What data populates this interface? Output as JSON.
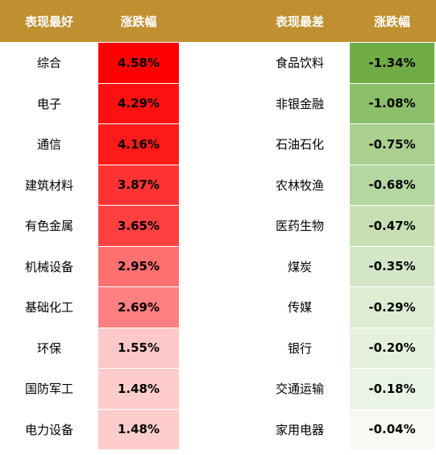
{
  "header": [
    "表现最好",
    "涨跌幅",
    "表现最差",
    "涨跌幅"
  ],
  "rows": [
    {
      "best": "综合",
      "best_change": "4.58%",
      "best_color": "#ff0000",
      "worst": "食品饮料",
      "worst_change": "-1.34%",
      "worst_color": "#70ad47"
    },
    {
      "best": "电子",
      "best_change": "4.29%",
      "best_color": "#ff1010",
      "worst": "非银金融",
      "worst_change": "-1.08%",
      "worst_color": "#8cbf6a"
    },
    {
      "best": "通信",
      "best_change": "4.16%",
      "best_color": "#ff1a1a",
      "worst": "石油石化",
      "worst_change": "-0.75%",
      "worst_color": "#a9d08e"
    },
    {
      "best": "建筑材料",
      "best_change": "3.87%",
      "best_color": "#ff3333",
      "worst": "农林牧渔",
      "worst_change": "-0.68%",
      "worst_color": "#b4d6a0"
    },
    {
      "best": "有色金属",
      "best_change": "3.65%",
      "best_color": "#ff4040",
      "worst": "医药生物",
      "worst_change": "-0.47%",
      "worst_color": "#c6e0b4"
    },
    {
      "best": "机械设备",
      "best_change": "2.95%",
      "best_color": "#ff7070",
      "worst": "煤炭",
      "worst_change": "-0.35%",
      "worst_color": "#d3e7c6"
    },
    {
      "best": "基础化工",
      "best_change": "2.69%",
      "best_color": "#ff8080",
      "worst": "传媒",
      "worst_change": "-0.29%",
      "worst_color": "#ddedd3"
    },
    {
      "best": "环保",
      "best_change": "1.55%",
      "best_color": "#ffc8c8",
      "worst": "银行",
      "worst_change": "-0.20%",
      "worst_color": "#e5f1dd"
    },
    {
      "best": "国防军工",
      "best_change": "1.48%",
      "best_color": "#ffcccc",
      "worst": "交通运输",
      "worst_change": "-0.18%",
      "worst_color": "#eaf4e4"
    },
    {
      "best": "电力设备",
      "best_change": "1.48%",
      "best_color": "#ffcccc",
      "worst": "家用电器",
      "worst_change": "-0.04%",
      "worst_color": "#f6faf3"
    }
  ]
}
